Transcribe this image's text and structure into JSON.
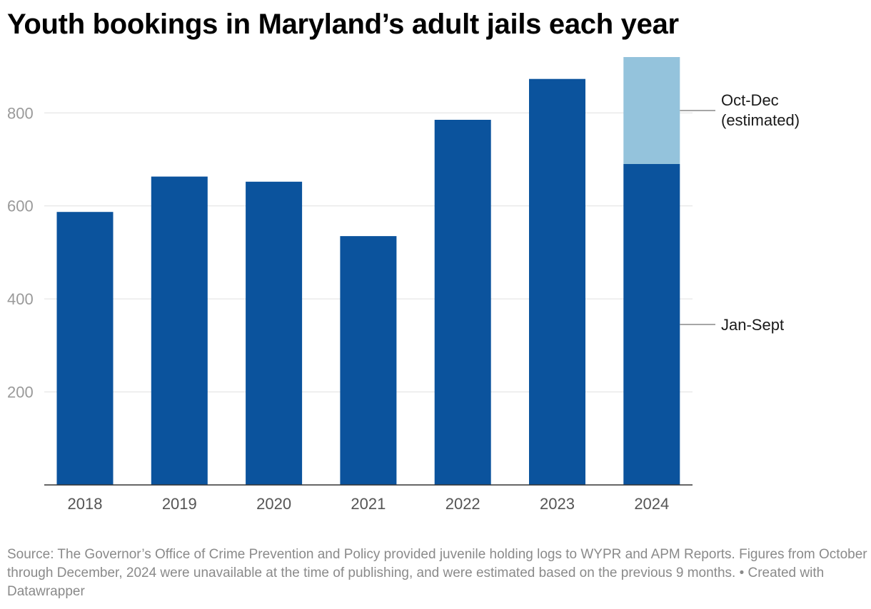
{
  "chart_data": {
    "type": "bar",
    "stacked": true,
    "title": "Youth bookings in Maryland’s adult jails each year",
    "categories": [
      "2018",
      "2019",
      "2020",
      "2021",
      "2022",
      "2023",
      "2024"
    ],
    "series": [
      {
        "name": "Jan-Sept",
        "values": [
          587,
          663,
          652,
          535,
          785,
          873,
          690
        ],
        "color": "#0b539d"
      },
      {
        "name": "Oct-Dec (estimated)",
        "values": [
          0,
          0,
          0,
          0,
          0,
          0,
          230
        ],
        "color": "#94c3dc"
      }
    ],
    "ylim": [
      0,
      920
    ],
    "yticks": [
      200,
      400,
      600,
      800
    ],
    "xlabel": "",
    "ylabel": "",
    "grid": true,
    "annotations": [
      {
        "series": "Oct-Dec (estimated)",
        "lines": [
          "Oct-Dec",
          "(estimated)"
        ]
      },
      {
        "series": "Jan-Sept",
        "lines": [
          "Jan-Sept"
        ]
      }
    ]
  },
  "footer": {
    "source": "Source: The Governor’s Office of Crime Prevention and Policy provided juvenile holding logs to WYPR and APM Reports. Figures from October through December, 2024 were unavailable at the time of publishing, and were estimated based on the previous 9 months.",
    "credit": "• Created with Datawrapper"
  }
}
